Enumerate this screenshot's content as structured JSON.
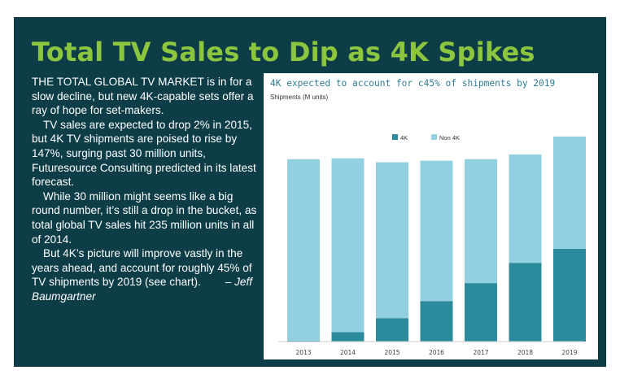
{
  "headline": "Total TV Sales to Dip as 4K Spikes",
  "article": {
    "paragraphs": [
      "THE TOTAL GLOBAL TV MARKET is in for a slow decline, but new 4K-capable sets offer a ray of hope for set-makers.",
      "TV sales are expected to drop 2% in 2015, but 4K TV shipments are poised to rise by 147%, surging past 30 million units, Futuresource Consulting predicted in its latest forecast.",
      "While 30 million might seems like a big round number, it’s still a drop in the bucket, as total global TV sales hit 235 million units in all of 2014.",
      "But 4K’s picture will improve vastly in the years ahead, and account for roughly 45% of TV shipments by 2019 (see chart)."
    ],
    "byline": "– Jeff Baumgartner"
  },
  "colors": {
    "panel_background": "#0d3e48",
    "headline": "#8cc63f",
    "series_4k": "#2b8b9c",
    "series_non4k": "#92cfe0"
  },
  "chart_data": {
    "type": "bar",
    "stacked": true,
    "title": "4K expected to account for c45% of shipments by 2019",
    "ylabel": "Shipments (M units)",
    "xlabel": "",
    "categories": [
      "2013",
      "2014",
      "2015",
      "2016",
      "2017",
      "2018",
      "2019"
    ],
    "series": [
      {
        "name": "4K",
        "values": [
          1,
          12,
          30,
          52,
          75,
          101,
          119
        ]
      },
      {
        "name": "Non 4K",
        "values": [
          233,
          223,
          200,
          180,
          159,
          139,
          144
        ]
      }
    ],
    "ylim": [
      0,
      290
    ],
    "legend_position": "top-center",
    "grid": false
  }
}
